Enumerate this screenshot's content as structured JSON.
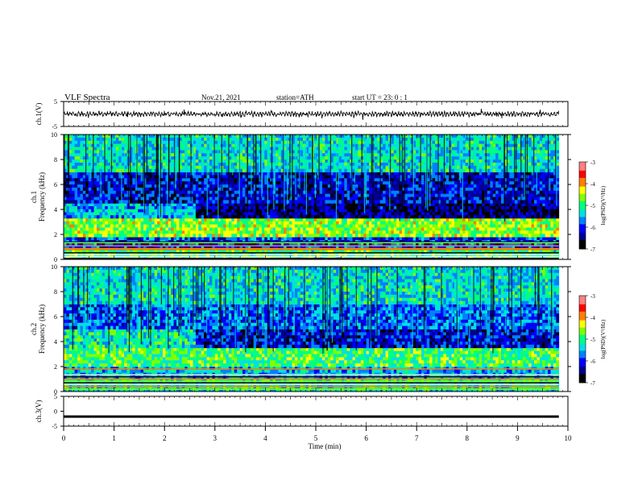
{
  "header": {
    "title": "VLF  Spectra",
    "date": "Nov.21, 2021",
    "station": "station=ATH",
    "start": "start  UT  =    23: 0   : 1"
  },
  "colorbar": {
    "label": "log(PSD)(V²/Hz)",
    "ticks": [
      "-3",
      "-4",
      "-5",
      "-6",
      "-7"
    ],
    "colors": [
      "#000000",
      "#00008b",
      "#0000ff",
      "#0080ff",
      "#00e0e0",
      "#00ff80",
      "#80ff00",
      "#ffff00",
      "#ff8000",
      "#ff0000",
      "#ff8080",
      "#ffffff"
    ]
  },
  "chart_data": [
    {
      "type": "line",
      "panel": "ch.1 waveform",
      "ylabel": "ch.1(V)",
      "ylim": [
        -5,
        5
      ],
      "yticks": [
        "5",
        "-5"
      ],
      "x_range_min": [
        0,
        9.82
      ],
      "approx_level_V": 0,
      "color": "#000000"
    },
    {
      "type": "heatmap",
      "panel": "ch.1 spectrogram",
      "ylabel": "ch.1\nFrequency  (kHz)",
      "ylim": [
        0,
        10
      ],
      "yticks": [
        "0",
        "2",
        "4",
        "6",
        "8",
        "10"
      ],
      "x_range_min": [
        0,
        9.82
      ],
      "band_change_min": 2.6,
      "bands": [
        {
          "from_kHz": 0.0,
          "to_kHz": 0.8,
          "level": "-5"
        },
        {
          "from_kHz": 0.8,
          "to_kHz": 1.8,
          "level": "-6"
        },
        {
          "from_kHz": 1.8,
          "to_kHz": 3.3,
          "level": "-4.6"
        },
        {
          "from_kHz": 3.3,
          "to_kHz": 4.5,
          "level": "-6.5"
        },
        {
          "from_kHz": 4.5,
          "to_kHz": 7.0,
          "level": "-6.2"
        },
        {
          "from_kHz": 7.0,
          "to_kHz": 10.0,
          "level": "-5.3"
        }
      ]
    },
    {
      "type": "heatmap",
      "panel": "ch.2 spectrogram",
      "ylabel": "ch.2\nFrequency  (kHz)",
      "ylim": [
        0,
        10
      ],
      "yticks": [
        "0",
        "2",
        "4",
        "6",
        "8",
        "10"
      ],
      "x_range_min": [
        0,
        9.82
      ],
      "band_change_min": 2.6,
      "bands": [
        {
          "from_kHz": 0.0,
          "to_kHz": 1.0,
          "level": "-5.2"
        },
        {
          "from_kHz": 1.0,
          "to_kHz": 2.0,
          "level": "-5.5"
        },
        {
          "from_kHz": 2.0,
          "to_kHz": 3.5,
          "level": "-4.9"
        },
        {
          "from_kHz": 3.5,
          "to_kHz": 5.0,
          "level": "-6.2"
        },
        {
          "from_kHz": 5.0,
          "to_kHz": 7.0,
          "level": "-5.8"
        },
        {
          "from_kHz": 7.0,
          "to_kHz": 10.0,
          "level": "-5.3"
        }
      ]
    },
    {
      "type": "line",
      "panel": "ch.3 waveform",
      "ylabel": "ch.3(V)",
      "ylim": [
        -5,
        5
      ],
      "yticks": [
        "5",
        "0",
        "-5"
      ],
      "x_range_min": [
        0,
        9.82
      ],
      "approx_level_V": -1.8,
      "color": "#000000"
    }
  ],
  "x_axis": {
    "xlabel": "Time  (min)",
    "xlim": [
      0,
      10
    ],
    "ticks": [
      "0",
      "1",
      "2",
      "3",
      "4",
      "5",
      "6",
      "7",
      "8",
      "9",
      "10"
    ]
  }
}
